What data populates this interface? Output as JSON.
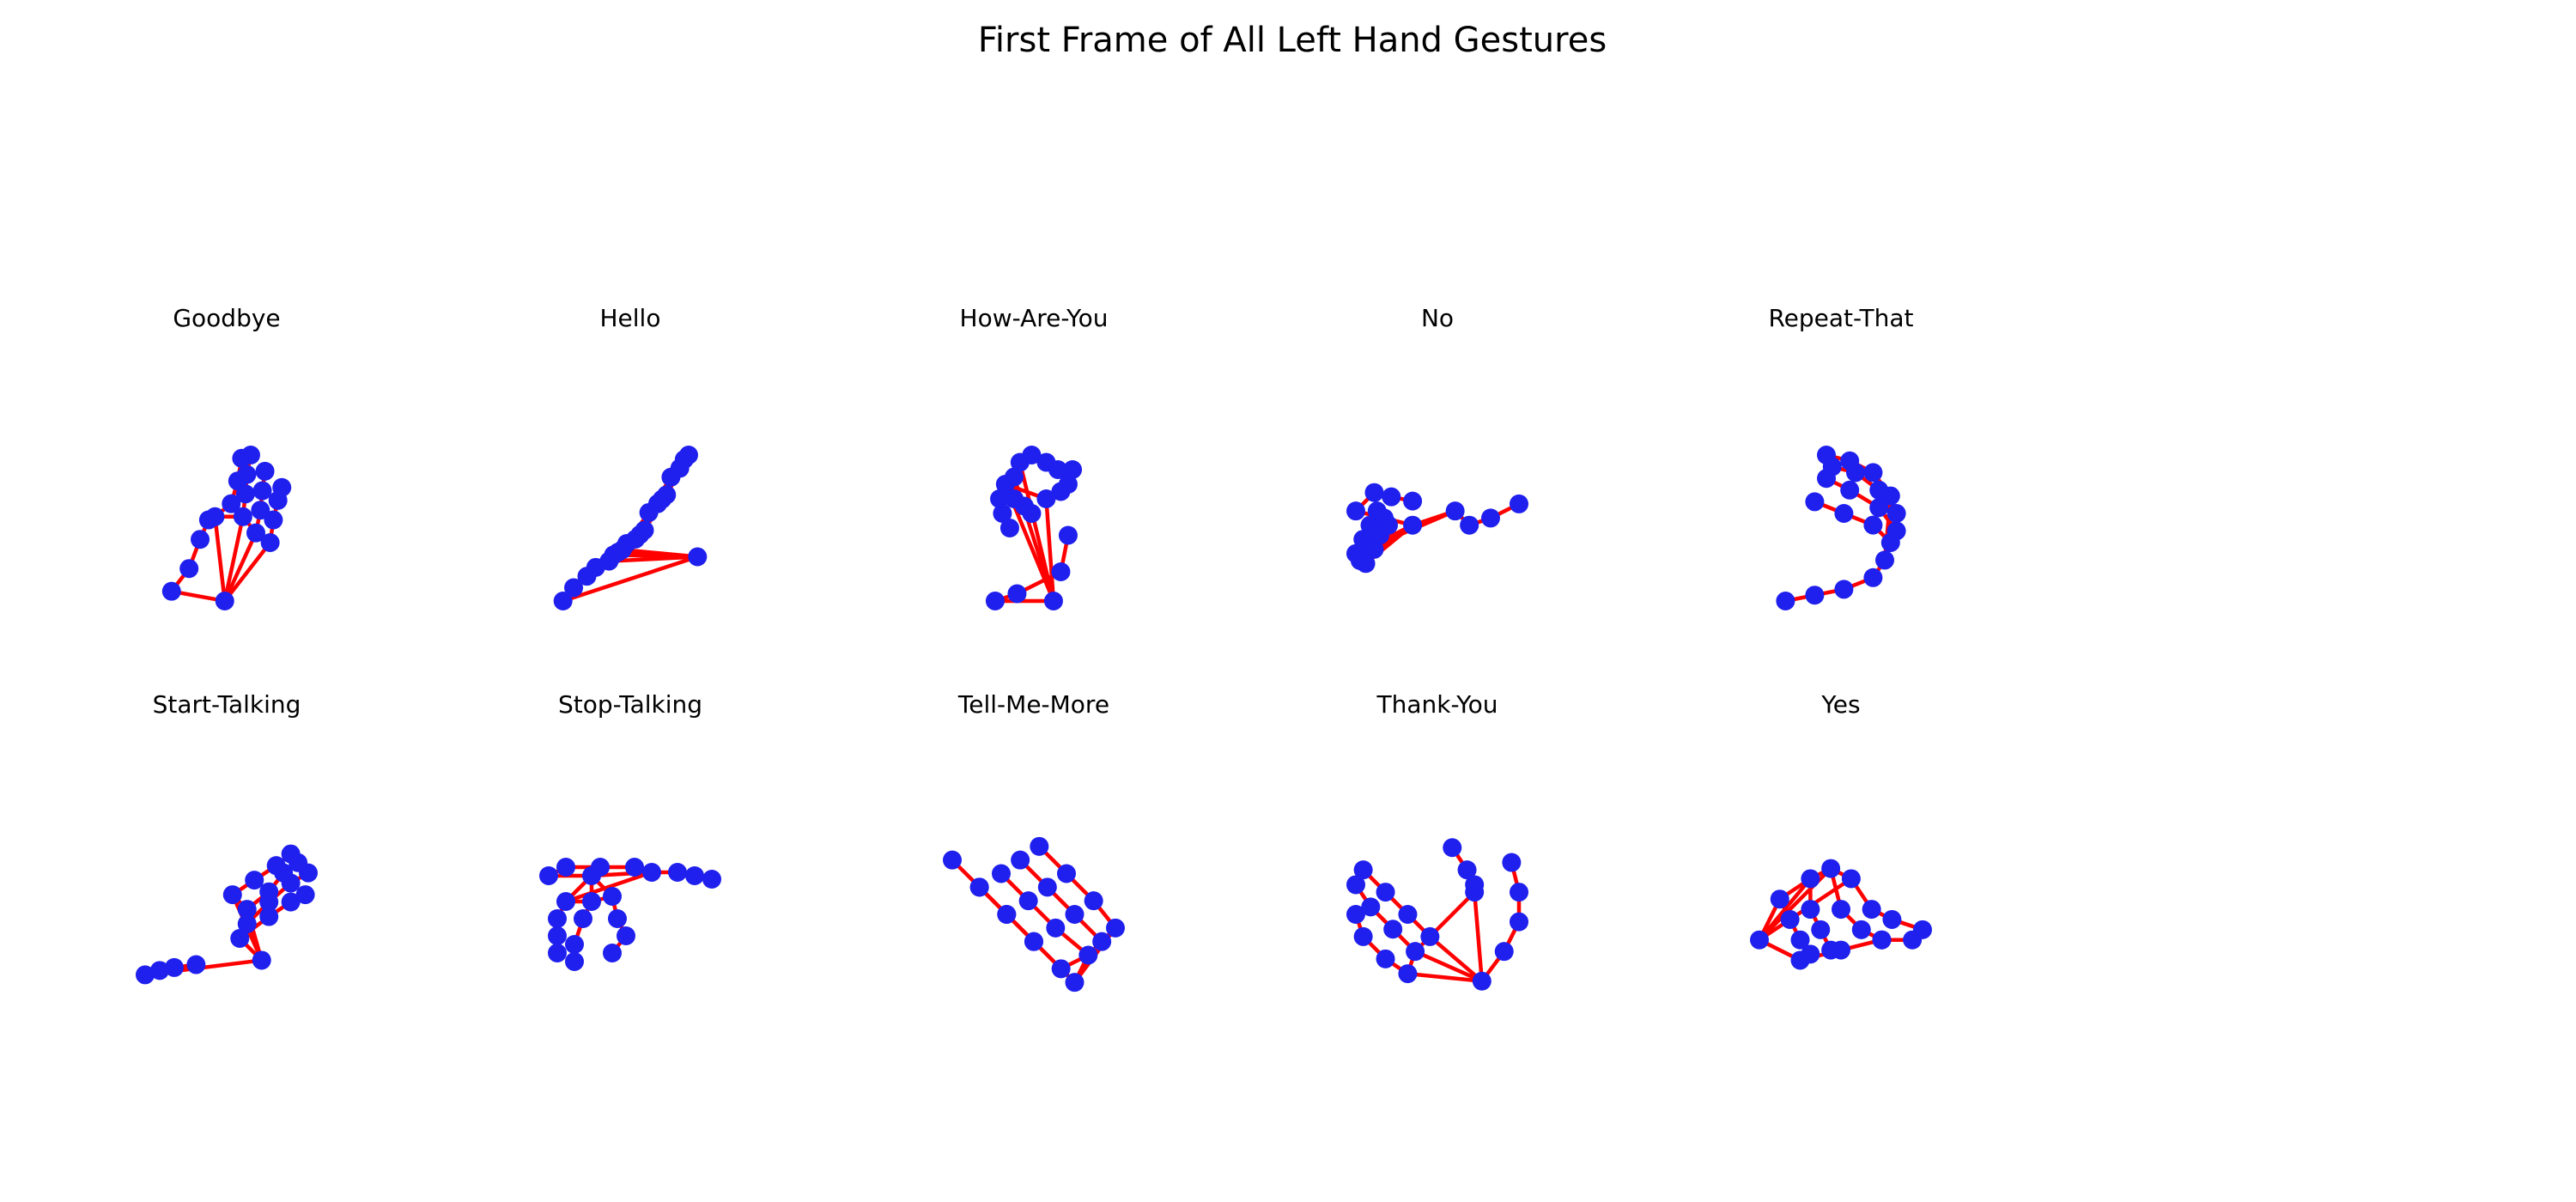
{
  "figure": {
    "title": "First Frame of All Left Hand Gestures"
  },
  "colors": {
    "connection": "#ff0000",
    "landmark": "#1f1fee",
    "background": "#ffffff"
  },
  "chart_data": {
    "type": "scatter",
    "description_note": "",
    "grid": false,
    "axes_visible": false,
    "subplot_grid": {
      "rows": 2,
      "cols": 6
    },
    "panels": [
      {
        "title": "Goodbye",
        "landmarks": [
          [
            1.0,
            1.0
          ],
          [
            0.18,
            1.15
          ],
          [
            0.45,
            1.5
          ],
          [
            0.62,
            1.95
          ],
          [
            0.75,
            2.25
          ],
          [
            0.85,
            2.3
          ],
          [
            1.1,
            2.5
          ],
          [
            1.2,
            2.85
          ],
          [
            1.26,
            3.2
          ],
          [
            1.28,
            2.3
          ],
          [
            1.32,
            2.65
          ],
          [
            1.34,
            2.95
          ],
          [
            1.4,
            3.25
          ],
          [
            1.48,
            2.05
          ],
          [
            1.55,
            2.4
          ],
          [
            1.58,
            2.7
          ],
          [
            1.62,
            3.0
          ],
          [
            1.7,
            1.9
          ],
          [
            1.75,
            2.25
          ],
          [
            1.82,
            2.55
          ],
          [
            1.88,
            2.75
          ]
        ]
      },
      {
        "title": "Hello",
        "landmarks": [
          [
            1.6,
            1.1
          ],
          [
            0.08,
            0.6
          ],
          [
            0.2,
            0.75
          ],
          [
            0.35,
            0.88
          ],
          [
            0.45,
            0.98
          ],
          [
            0.6,
            1.05
          ],
          [
            0.8,
            1.25
          ],
          [
            1.05,
            1.6
          ],
          [
            1.3,
            2.0
          ],
          [
            0.65,
            1.12
          ],
          [
            0.9,
            1.3
          ],
          [
            1.15,
            1.7
          ],
          [
            1.4,
            2.1
          ],
          [
            0.7,
            1.15
          ],
          [
            0.95,
            1.35
          ],
          [
            1.2,
            1.75
          ],
          [
            1.45,
            2.2
          ],
          [
            0.75,
            1.18
          ],
          [
            1.0,
            1.4
          ],
          [
            1.25,
            1.8
          ],
          [
            1.5,
            2.25
          ]
        ]
      },
      {
        "title": "How-Are-You",
        "landmarks": [
          [
            1.15,
            1.35
          ],
          [
            0.75,
            1.35
          ],
          [
            0.9,
            1.4
          ],
          [
            1.2,
            1.55
          ],
          [
            1.25,
            1.8
          ],
          [
            1.1,
            2.05
          ],
          [
            1.2,
            2.1
          ],
          [
            1.25,
            2.15
          ],
          [
            1.28,
            2.25
          ],
          [
            0.82,
            2.15
          ],
          [
            0.78,
            2.05
          ],
          [
            0.8,
            1.95
          ],
          [
            0.85,
            1.85
          ],
          [
            0.88,
            2.2
          ],
          [
            0.88,
            2.05
          ],
          [
            0.95,
            2.0
          ],
          [
            1.0,
            1.95
          ],
          [
            0.92,
            2.3
          ],
          [
            1.0,
            2.35
          ],
          [
            1.1,
            2.3
          ],
          [
            1.18,
            2.25
          ]
        ]
      },
      {
        "title": "No",
        "landmarks": [
          [
            0.55,
            1.95
          ],
          [
            0.15,
            2.05
          ],
          [
            0.28,
            2.18
          ],
          [
            0.4,
            2.15
          ],
          [
            0.55,
            2.12
          ],
          [
            0.85,
            2.05
          ],
          [
            0.95,
            1.95
          ],
          [
            1.1,
            2.0
          ],
          [
            1.3,
            2.1
          ],
          [
            0.15,
            1.75
          ],
          [
            0.2,
            1.85
          ],
          [
            0.25,
            1.95
          ],
          [
            0.3,
            2.05
          ],
          [
            0.18,
            1.7
          ],
          [
            0.22,
            1.8
          ],
          [
            0.28,
            1.9
          ],
          [
            0.35,
            2.0
          ],
          [
            0.22,
            1.68
          ],
          [
            0.28,
            1.78
          ],
          [
            0.32,
            1.88
          ],
          [
            0.38,
            1.95
          ]
        ]
      },
      {
        "title": "Repeat-That",
        "landmarks": [
          [
            1.45,
            1.95
          ],
          [
            1.35,
            1.8
          ],
          [
            1.1,
            1.7
          ],
          [
            0.85,
            1.65
          ],
          [
            0.6,
            1.6
          ],
          [
            1.5,
            2.1
          ],
          [
            1.35,
            2.25
          ],
          [
            1.1,
            2.35
          ],
          [
            0.85,
            2.45
          ],
          [
            1.55,
            2.2
          ],
          [
            1.4,
            2.4
          ],
          [
            1.15,
            2.55
          ],
          [
            0.95,
            2.65
          ],
          [
            1.55,
            2.35
          ],
          [
            1.4,
            2.55
          ],
          [
            1.2,
            2.7
          ],
          [
            1.0,
            2.75
          ],
          [
            1.5,
            2.5
          ],
          [
            1.35,
            2.7
          ],
          [
            1.15,
            2.8
          ],
          [
            0.95,
            2.85
          ]
        ]
      },
      {
        "title": "Start-Talking",
        "landmarks": [
          [
            1.2,
            1.95
          ],
          [
            0.4,
            1.85
          ],
          [
            0.5,
            1.88
          ],
          [
            0.6,
            1.9
          ],
          [
            0.75,
            1.92
          ],
          [
            1.05,
            2.1
          ],
          [
            1.25,
            2.25
          ],
          [
            1.4,
            2.35
          ],
          [
            1.5,
            2.4
          ],
          [
            1.1,
            2.2
          ],
          [
            1.25,
            2.35
          ],
          [
            1.4,
            2.48
          ],
          [
            1.52,
            2.55
          ],
          [
            1.1,
            2.3
          ],
          [
            1.25,
            2.42
          ],
          [
            1.35,
            2.55
          ],
          [
            1.45,
            2.62
          ],
          [
            1.0,
            2.4
          ],
          [
            1.15,
            2.5
          ],
          [
            1.3,
            2.6
          ],
          [
            1.4,
            2.68
          ]
        ]
      },
      {
        "title": "Stop-Talking",
        "landmarks": [
          [
            0.7,
            2.1
          ],
          [
            0.45,
            2.1
          ],
          [
            0.55,
            2.15
          ],
          [
            0.75,
            2.15
          ],
          [
            0.95,
            2.15
          ],
          [
            1.05,
            2.12
          ],
          [
            1.2,
            2.12
          ],
          [
            1.3,
            2.1
          ],
          [
            1.4,
            2.08
          ],
          [
            0.55,
            1.95
          ],
          [
            0.5,
            1.85
          ],
          [
            0.5,
            1.75
          ],
          [
            0.5,
            1.65
          ],
          [
            0.7,
            1.95
          ],
          [
            0.65,
            1.85
          ],
          [
            0.6,
            1.7
          ],
          [
            0.6,
            1.6
          ],
          [
            0.82,
            1.98
          ],
          [
            0.85,
            1.85
          ],
          [
            0.9,
            1.75
          ],
          [
            0.82,
            1.65
          ]
        ]
      },
      {
        "title": "Tell-Me-More",
        "landmarks": [
          [
            0.85,
            1.2
          ],
          [
            0.7,
            1.35
          ],
          [
            0.6,
            1.45
          ],
          [
            0.5,
            1.55
          ],
          [
            0.4,
            1.65
          ],
          [
            0.8,
            1.25
          ],
          [
            0.7,
            1.35
          ],
          [
            0.6,
            1.45
          ],
          [
            0.5,
            1.55
          ],
          [
            0.9,
            1.3
          ],
          [
            0.78,
            1.4
          ],
          [
            0.68,
            1.5
          ],
          [
            0.58,
            1.6
          ],
          [
            0.95,
            1.35
          ],
          [
            0.85,
            1.45
          ],
          [
            0.75,
            1.55
          ],
          [
            0.65,
            1.65
          ],
          [
            1.0,
            1.4
          ],
          [
            0.92,
            1.5
          ],
          [
            0.82,
            1.6
          ],
          [
            0.72,
            1.7
          ]
        ]
      },
      {
        "title": "Thank-You",
        "landmarks": [
          [
            1.3,
            1.15
          ],
          [
            1.45,
            1.35
          ],
          [
            1.55,
            1.55
          ],
          [
            1.55,
            1.75
          ],
          [
            1.5,
            1.95
          ],
          [
            1.25,
            1.75
          ],
          [
            1.25,
            1.8
          ],
          [
            1.2,
            1.9
          ],
          [
            1.1,
            2.05
          ],
          [
            0.95,
            1.45
          ],
          [
            0.8,
            1.6
          ],
          [
            0.65,
            1.75
          ],
          [
            0.5,
            1.9
          ],
          [
            0.85,
            1.35
          ],
          [
            0.7,
            1.5
          ],
          [
            0.55,
            1.65
          ],
          [
            0.45,
            1.8
          ],
          [
            0.8,
            1.2
          ],
          [
            0.65,
            1.3
          ],
          [
            0.5,
            1.45
          ],
          [
            0.45,
            1.6
          ]
        ]
      },
      {
        "title": "Yes",
        "landmarks": [
          [
            0.5,
            1.45
          ],
          [
            0.7,
            1.35
          ],
          [
            0.9,
            1.4
          ],
          [
            1.1,
            1.45
          ],
          [
            1.25,
            1.45
          ],
          [
            0.95,
            1.75
          ],
          [
            1.05,
            1.6
          ],
          [
            1.15,
            1.55
          ],
          [
            1.3,
            1.5
          ],
          [
            0.85,
            1.8
          ],
          [
            0.9,
            1.6
          ],
          [
            1.0,
            1.5
          ],
          [
            1.1,
            1.45
          ],
          [
            0.75,
            1.75
          ],
          [
            0.75,
            1.6
          ],
          [
            0.8,
            1.5
          ],
          [
            0.85,
            1.4
          ],
          [
            0.6,
            1.65
          ],
          [
            0.65,
            1.55
          ],
          [
            0.7,
            1.45
          ],
          [
            0.75,
            1.38
          ]
        ]
      }
    ]
  }
}
